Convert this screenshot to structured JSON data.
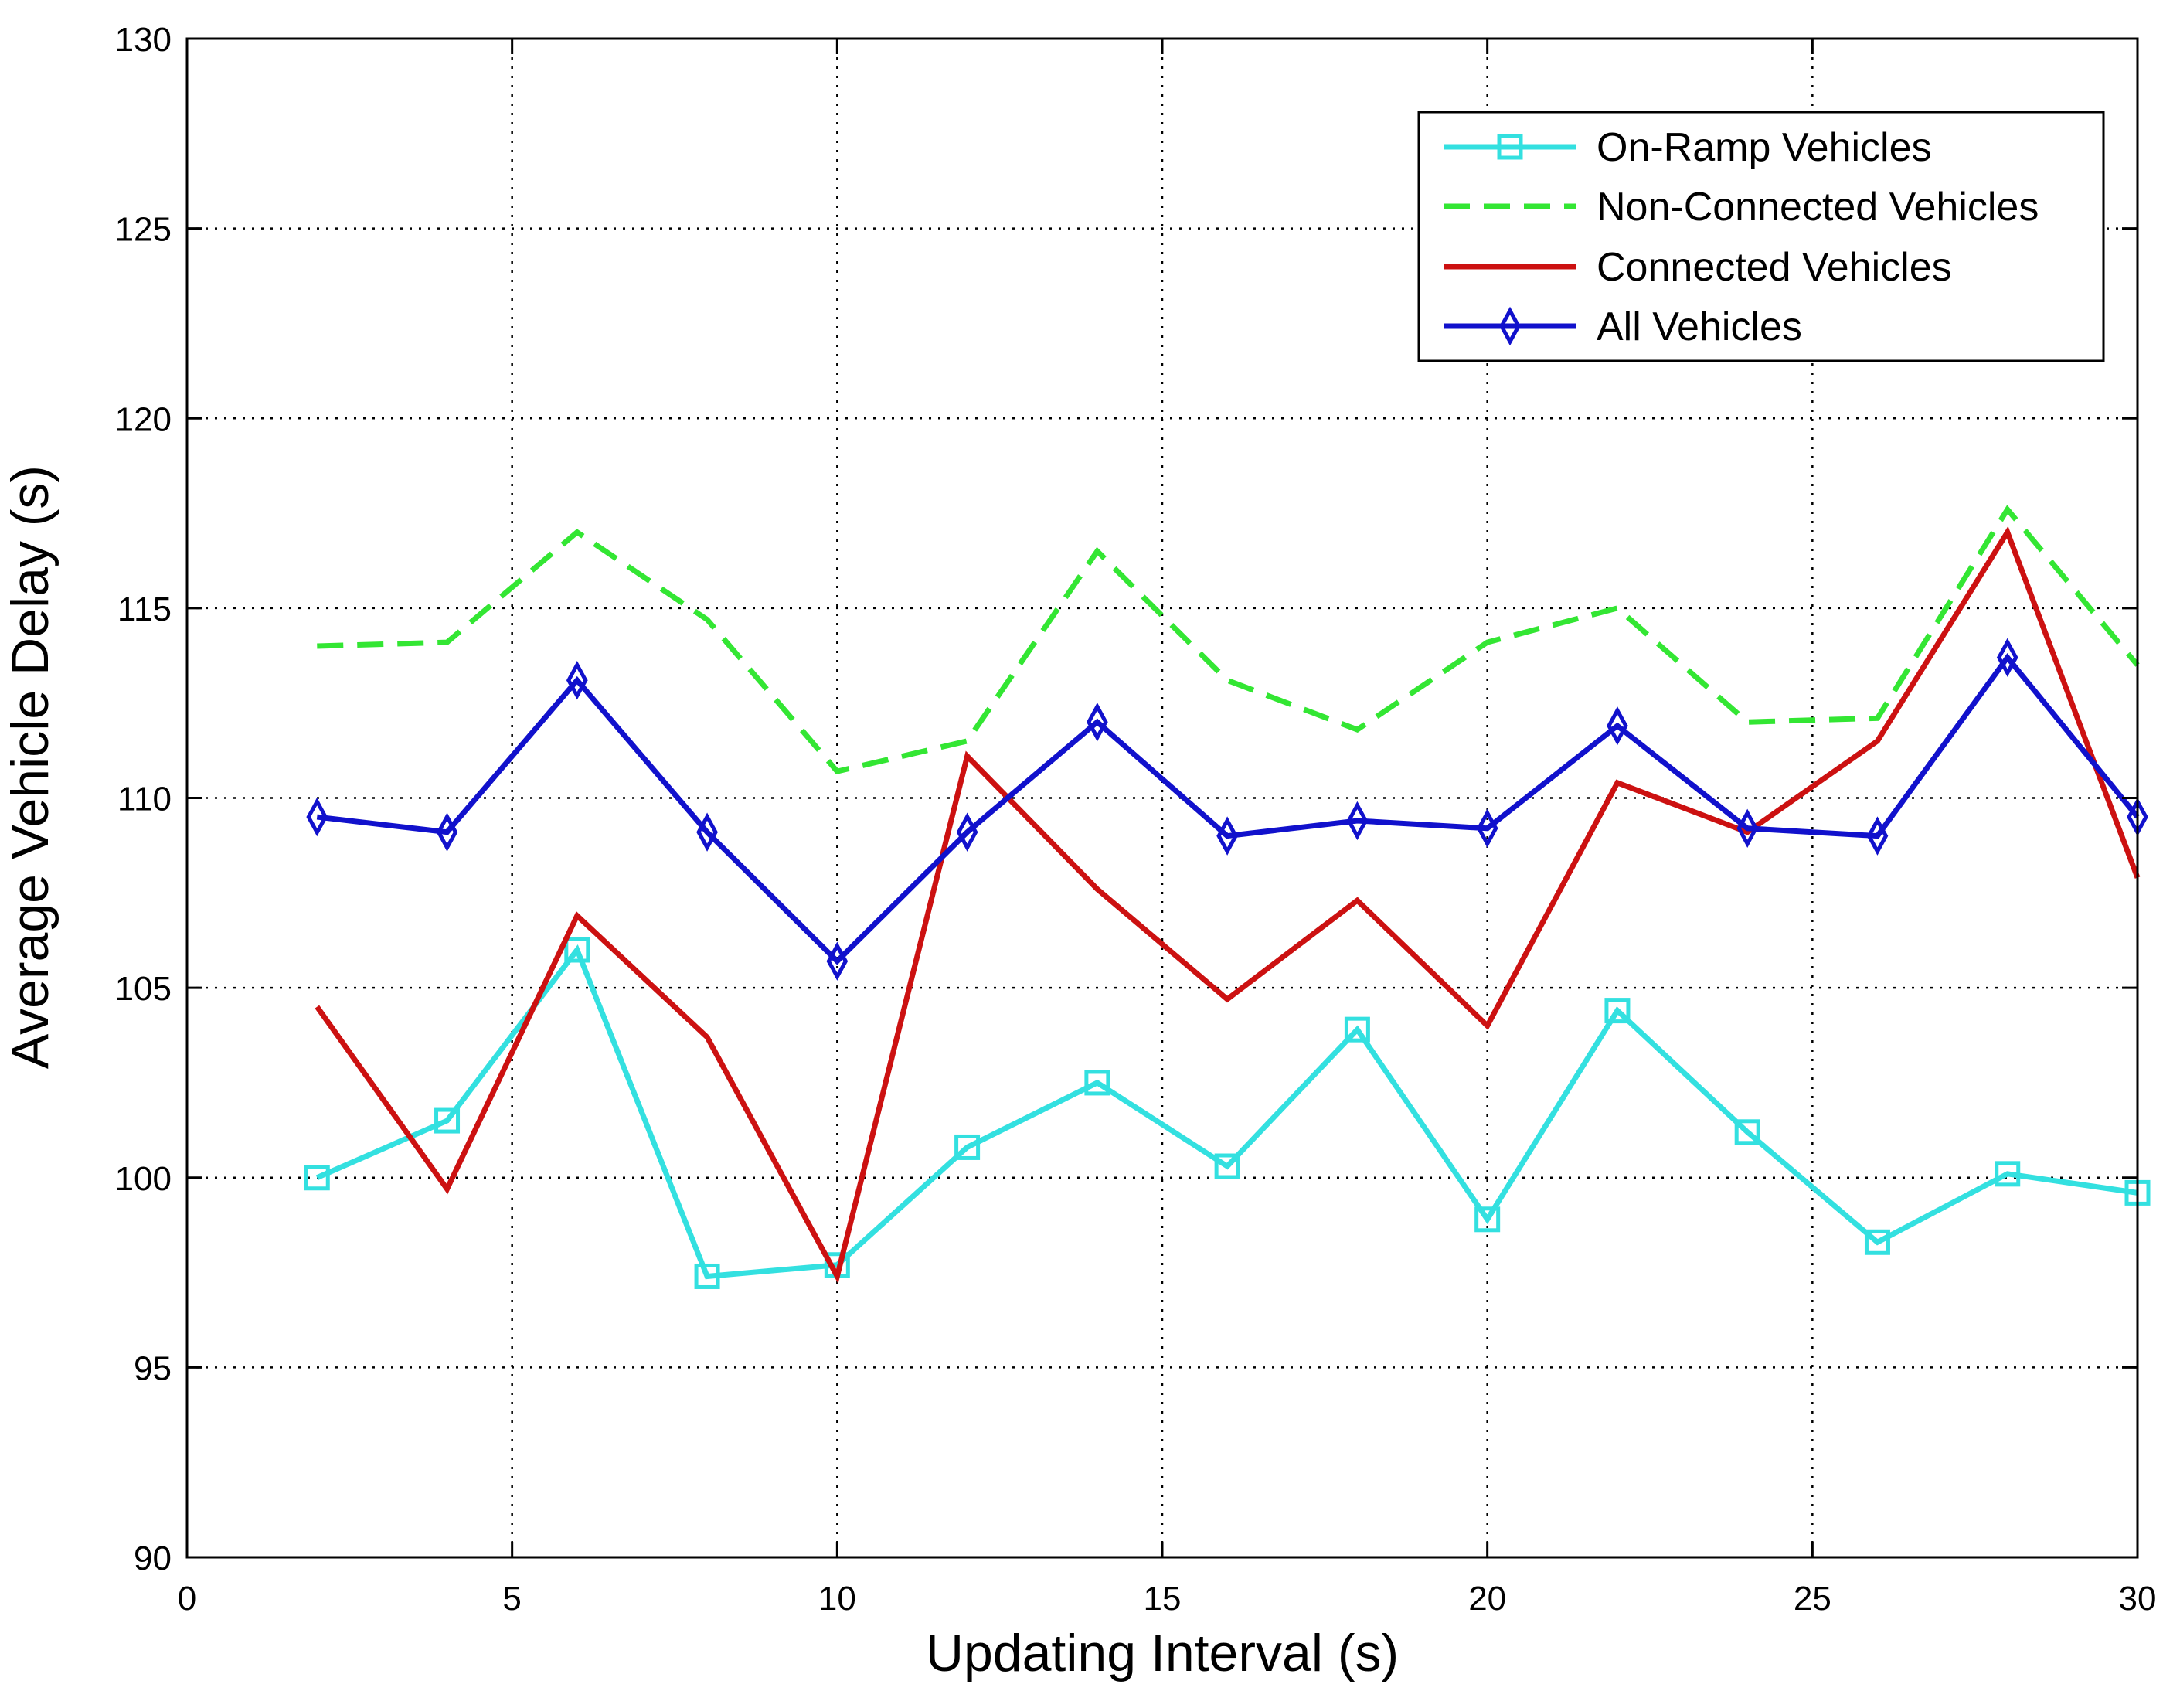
{
  "chart_data": {
    "type": "line",
    "title": "",
    "xlabel": "Updating Interval (s)",
    "ylabel": "Average Vehicle Delay (s)",
    "xlim": [
      0,
      30
    ],
    "ylim": [
      90,
      130
    ],
    "xticks": [
      0,
      5,
      10,
      15,
      20,
      25,
      30
    ],
    "yticks": [
      90,
      95,
      100,
      105,
      110,
      115,
      120,
      125,
      130
    ],
    "grid": true,
    "legend_position": "top-right",
    "x": [
      2,
      4,
      6,
      8,
      10,
      12,
      14,
      16,
      18,
      20,
      22,
      24,
      26,
      28,
      30
    ],
    "series": [
      {
        "name": "On-Ramp Vehicles",
        "color": "#33e0e0",
        "style": "solid",
        "marker": "square",
        "values": [
          100.0,
          101.5,
          106.0,
          97.4,
          97.7,
          100.8,
          102.5,
          100.3,
          103.9,
          98.9,
          104.4,
          101.2,
          98.3,
          100.1,
          99.6
        ]
      },
      {
        "name": "Non-Connected Vehicles",
        "color": "#33e633",
        "style": "dashed",
        "marker": "none",
        "values": [
          114.0,
          114.1,
          117.0,
          114.7,
          110.7,
          111.5,
          116.5,
          113.1,
          111.8,
          114.1,
          115.0,
          112.0,
          112.1,
          117.6,
          113.5
        ]
      },
      {
        "name": "Connected Vehicles",
        "color": "#cc1111",
        "style": "solid",
        "marker": "none",
        "values": [
          104.5,
          99.7,
          106.9,
          103.7,
          97.4,
          111.1,
          107.6,
          104.7,
          107.3,
          104.0,
          110.4,
          109.1,
          111.5,
          117.0,
          107.9
        ]
      },
      {
        "name": "All Vehicles",
        "color": "#1111cc",
        "style": "solid",
        "marker": "diamond",
        "values": [
          109.5,
          109.1,
          113.1,
          109.1,
          105.7,
          109.1,
          112.0,
          109.0,
          109.4,
          109.2,
          111.9,
          109.2,
          109.0,
          113.7,
          109.5
        ]
      }
    ]
  }
}
